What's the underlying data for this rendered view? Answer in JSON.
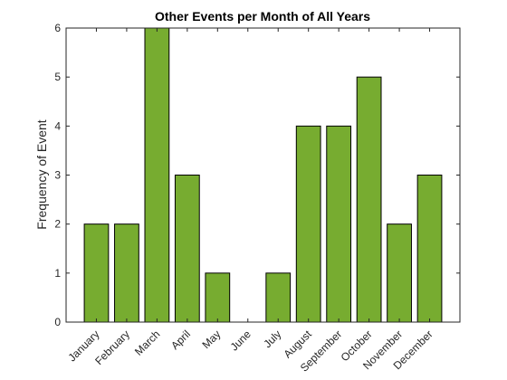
{
  "chart_data": {
    "type": "bar",
    "title": "Other Events per Month of All Years",
    "xlabel": "",
    "ylabel": "Frequency of Event",
    "categories": [
      "January",
      "February",
      "March",
      "April",
      "May",
      "June",
      "July",
      "August",
      "September",
      "October",
      "November",
      "December"
    ],
    "values": [
      2,
      2,
      6,
      3,
      1,
      0,
      1,
      4,
      4,
      5,
      2,
      3
    ],
    "ylim": [
      0,
      6
    ],
    "yticks": [
      0,
      1,
      2,
      3,
      4,
      5,
      6
    ],
    "grid": false,
    "bar_color": "#77ac30",
    "edge_color": "#000000"
  }
}
